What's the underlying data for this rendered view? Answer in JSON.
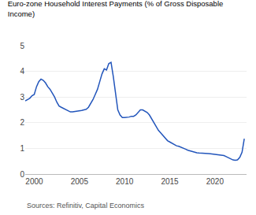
{
  "chart_data": {
    "type": "line",
    "title": "Euro-zone Household Interest Payments (% of Gross Disposable\nIncome)",
    "annotations": [
      "Sources: Refinitiv, Capital Economics"
    ],
    "color": "#2255bb",
    "grid": true,
    "xlim": [
      1999.0,
      2023.5
    ],
    "xticks": [
      2000,
      2005,
      2010,
      2015,
      2020
    ],
    "ylim": [
      0,
      5
    ],
    "yticks": [
      0,
      1,
      2,
      3,
      4,
      5
    ],
    "x": [
      1999.0,
      1999.25,
      1999.5,
      1999.75,
      2000.0,
      2000.25,
      2000.5,
      2000.75,
      2001.0,
      2001.25,
      2001.5,
      2001.75,
      2002.0,
      2002.25,
      2002.5,
      2002.75,
      2003.0,
      2003.25,
      2003.5,
      2003.75,
      2004.0,
      2004.25,
      2004.5,
      2004.75,
      2005.0,
      2005.25,
      2005.5,
      2005.75,
      2006.0,
      2006.25,
      2006.5,
      2006.75,
      2007.0,
      2007.25,
      2007.5,
      2007.75,
      2008.0,
      2008.25,
      2008.5,
      2008.75,
      2009.0,
      2009.25,
      2009.5,
      2009.75,
      2010.0,
      2010.25,
      2010.5,
      2010.75,
      2011.0,
      2011.25,
      2011.5,
      2011.75,
      2012.0,
      2012.25,
      2012.5,
      2012.75,
      2013.0,
      2013.25,
      2013.5,
      2013.75,
      2014.0,
      2014.25,
      2014.5,
      2014.75,
      2015.0,
      2015.25,
      2015.5,
      2015.75,
      2016.0,
      2016.25,
      2016.5,
      2016.75,
      2017.0,
      2017.25,
      2017.5,
      2017.75,
      2018.0,
      2018.25,
      2018.5,
      2018.75,
      2019.0,
      2019.25,
      2019.5,
      2019.75,
      2020.0,
      2020.25,
      2020.5,
      2020.75,
      2021.0,
      2021.25,
      2021.5,
      2021.75,
      2022.0,
      2022.25,
      2022.5,
      2022.75,
      2023.0,
      2023.25
    ],
    "values": [
      2.85,
      2.9,
      2.95,
      3.05,
      3.1,
      3.4,
      3.6,
      3.7,
      3.65,
      3.55,
      3.4,
      3.3,
      3.15,
      3.0,
      2.8,
      2.65,
      2.6,
      2.55,
      2.5,
      2.45,
      2.42,
      2.42,
      2.43,
      2.45,
      2.45,
      2.48,
      2.5,
      2.52,
      2.6,
      2.75,
      2.9,
      3.1,
      3.3,
      3.6,
      3.9,
      4.1,
      4.05,
      4.3,
      4.35,
      3.8,
      3.1,
      2.5,
      2.3,
      2.2,
      2.2,
      2.2,
      2.22,
      2.25,
      2.25,
      2.3,
      2.4,
      2.5,
      2.5,
      2.45,
      2.4,
      2.3,
      2.15,
      2.0,
      1.85,
      1.7,
      1.6,
      1.5,
      1.4,
      1.3,
      1.25,
      1.2,
      1.15,
      1.1,
      1.08,
      1.05,
      1.0,
      0.97,
      0.93,
      0.9,
      0.88,
      0.85,
      0.83,
      0.82,
      0.82,
      0.81,
      0.8,
      0.8,
      0.79,
      0.78,
      0.78,
      0.77,
      0.76,
      0.75,
      0.72,
      0.68,
      0.63,
      0.58,
      0.55,
      0.54,
      0.55,
      0.65,
      0.85,
      1.38
    ]
  }
}
